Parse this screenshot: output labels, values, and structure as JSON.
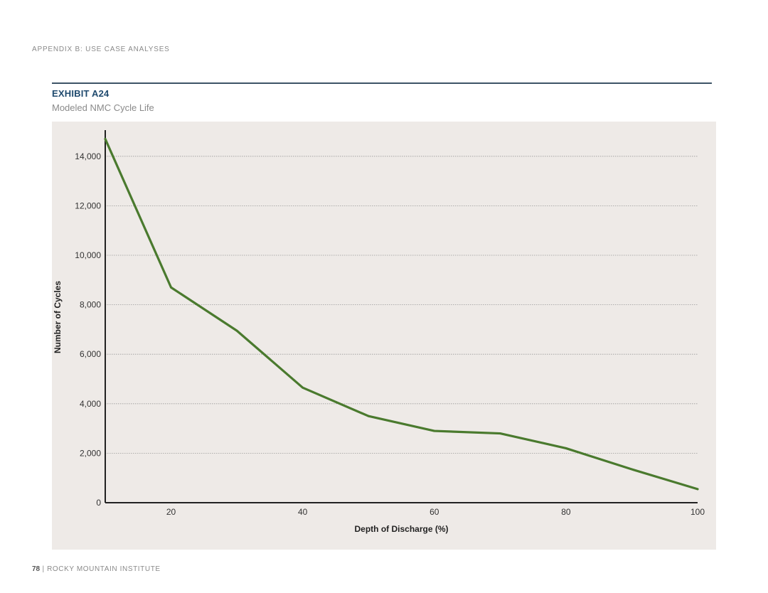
{
  "header": {
    "appendix_label": "APPENDIX B: USE CASE ANALYSES"
  },
  "exhibit": {
    "id": "EXHIBIT A24",
    "subtitle": "Modeled NMC Cycle Life"
  },
  "footer": {
    "page_number": "78",
    "separator": " | ",
    "org": "ROCKY MOUNTAIN INSTITUTE"
  },
  "colors": {
    "line": "#4a7a2e",
    "panel": "#eeeae7",
    "accent": "#1f4a6e"
  },
  "chart_data": {
    "type": "line",
    "title": "",
    "xlabel": "Depth of Discharge (%)",
    "ylabel": "Number of Cycles",
    "xlim": [
      10,
      100
    ],
    "ylim": [
      0,
      15000
    ],
    "x_ticks": [
      20,
      40,
      60,
      80,
      100
    ],
    "x_tick_labels": [
      "20",
      "40",
      "60",
      "80",
      "100"
    ],
    "y_ticks": [
      0,
      2000,
      4000,
      6000,
      8000,
      10000,
      12000,
      14000
    ],
    "y_tick_labels": [
      "0",
      "2,000",
      "4,000",
      "6,000",
      "8,000",
      "10,000",
      "12,000",
      "14,000"
    ],
    "grid": "horizontal dotted",
    "series": [
      {
        "x": [
          10,
          20,
          30,
          40,
          50,
          60,
          70,
          80,
          90,
          100
        ],
        "y": [
          14700,
          8700,
          6950,
          4650,
          3500,
          2900,
          2800,
          2200,
          1350,
          550
        ]
      }
    ]
  }
}
